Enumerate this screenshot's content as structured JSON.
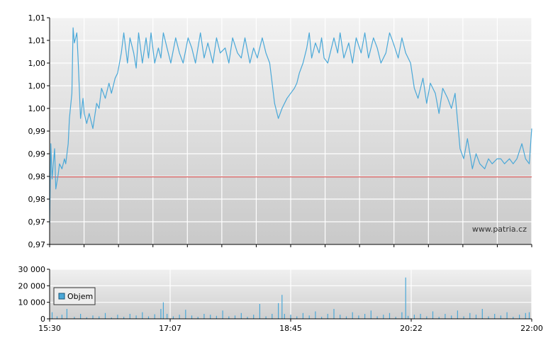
{
  "chart_data": [
    {
      "type": "line",
      "title": "",
      "xlabel": "",
      "ylabel": "",
      "ylim": [
        0.965,
        1.01
      ],
      "grid": true,
      "y_tick_labels": [
        "0,97",
        "0,97",
        "0,98",
        "0,98",
        "0,99",
        "0,99",
        "1,00",
        "1,00",
        "1,00",
        "1,01",
        "1,01"
      ],
      "x_tick_labels": [
        "15:30",
        "17:07",
        "18:45",
        "20:22",
        "22:00"
      ],
      "reference_line": {
        "value": 0.9784,
        "color": "#cc3333"
      },
      "series": [
        {
          "color": "#4aa8d8",
          "x": [
            "15:30",
            "15:31",
            "15:32",
            "15:34",
            "15:35",
            "15:37",
            "15:38",
            "15:40",
            "15:42",
            "15:43",
            "15:45",
            "15:46",
            "15:48",
            "15:49",
            "15:50",
            "15:52",
            "15:53",
            "15:55",
            "15:57",
            "15:58",
            "16:00",
            "16:02",
            "16:05",
            "16:08",
            "16:10",
            "16:12",
            "16:15",
            "16:18",
            "16:20",
            "16:23",
            "16:25",
            "16:28",
            "16:30",
            "16:33",
            "16:35",
            "16:38",
            "16:40",
            "16:42",
            "16:45",
            "16:48",
            "16:50",
            "16:52",
            "16:55",
            "16:58",
            "17:00",
            "17:02",
            "17:05",
            "17:08",
            "17:12",
            "17:15",
            "17:18",
            "17:22",
            "17:25",
            "17:28",
            "17:32",
            "17:35",
            "17:38",
            "17:42",
            "17:45",
            "17:48",
            "17:52",
            "17:55",
            "17:58",
            "18:02",
            "18:05",
            "18:08",
            "18:12",
            "18:15",
            "18:18",
            "18:22",
            "18:25",
            "18:28",
            "18:32",
            "18:35",
            "18:38",
            "18:42",
            "18:45",
            "18:48",
            "18:50",
            "18:52",
            "18:55",
            "18:58",
            "19:00",
            "19:02",
            "19:05",
            "19:08",
            "19:10",
            "19:12",
            "19:15",
            "19:18",
            "19:20",
            "19:23",
            "19:25",
            "19:28",
            "19:32",
            "19:35",
            "19:38",
            "19:42",
            "19:45",
            "19:48",
            "19:52",
            "19:55",
            "19:58",
            "20:02",
            "20:05",
            "20:08",
            "20:12",
            "20:15",
            "20:18",
            "20:22",
            "20:25",
            "20:28",
            "20:32",
            "20:35",
            "20:38",
            "20:42",
            "20:45",
            "20:48",
            "20:52",
            "20:55",
            "20:58",
            "21:02",
            "21:05",
            "21:08",
            "21:12",
            "21:15",
            "21:18",
            "21:22",
            "21:25",
            "21:28",
            "21:32",
            "21:35",
            "21:38",
            "21:42",
            "21:45",
            "21:48",
            "21:52",
            "21:55",
            "21:58",
            "22:00"
          ],
          "values": [
            0.969,
            0.985,
            0.978,
            0.984,
            0.976,
            0.979,
            0.981,
            0.98,
            0.982,
            0.981,
            0.985,
            0.99,
            0.995,
            1.008,
            1.005,
            1.007,
            1.002,
            0.99,
            0.994,
            0.991,
            0.989,
            0.991,
            0.988,
            0.993,
            0.992,
            0.996,
            0.994,
            0.997,
            0.995,
            0.998,
            0.999,
            1.003,
            1.007,
            1.001,
            1.006,
            1.003,
            1.0,
            1.007,
            1.001,
            1.006,
            1.002,
            1.007,
            1.001,
            1.004,
            1.002,
            1.007,
            1.004,
            1.001,
            1.006,
            1.003,
            1.001,
            1.006,
            1.004,
            1.001,
            1.007,
            1.002,
            1.005,
            1.001,
            1.006,
            1.003,
            1.004,
            1.001,
            1.006,
            1.003,
            1.002,
            1.006,
            1.001,
            1.004,
            1.002,
            1.006,
            1.003,
            1.001,
            0.993,
            0.99,
            0.992,
            0.994,
            0.995,
            0.996,
            0.997,
            0.999,
            1.001,
            1.004,
            1.007,
            1.002,
            1.005,
            1.003,
            1.006,
            1.002,
            1.001,
            1.004,
            1.006,
            1.003,
            1.007,
            1.002,
            1.005,
            1.001,
            1.006,
            1.003,
            1.007,
            1.002,
            1.006,
            1.004,
            1.001,
            1.003,
            1.007,
            1.005,
            1.002,
            1.006,
            1.003,
            1.001,
            0.996,
            0.994,
            0.998,
            0.993,
            0.997,
            0.995,
            0.991,
            0.996,
            0.994,
            0.992,
            0.995,
            0.984,
            0.982,
            0.986,
            0.98,
            0.983,
            0.981,
            0.98,
            0.982,
            0.981,
            0.982,
            0.982,
            0.981,
            0.982,
            0.981,
            0.982,
            0.985,
            0.982,
            0.981,
            0.988
          ]
        }
      ],
      "watermark": "www.patria.cz"
    },
    {
      "type": "bar",
      "title": "",
      "xlabel": "",
      "ylabel": "",
      "ylim": [
        0,
        30000
      ],
      "grid": true,
      "y_tick_labels": [
        "0",
        "10 000",
        "20 000",
        "30 000"
      ],
      "x_tick_labels": [
        "15:30",
        "17:07",
        "18:45",
        "20:22",
        "22:00"
      ],
      "legend": {
        "position": "left",
        "entries": [
          {
            "name": "Objem",
            "color": "#4aa8d8"
          }
        ]
      },
      "series": [
        {
          "name": "Objem",
          "color": "#4aa8d8",
          "x": [
            "15:32",
            "15:36",
            "15:40",
            "15:44",
            "15:50",
            "15:55",
            "16:00",
            "16:05",
            "16:10",
            "16:15",
            "16:20",
            "16:25",
            "16:30",
            "16:35",
            "16:40",
            "16:45",
            "16:50",
            "16:55",
            "17:00",
            "17:02",
            "17:05",
            "17:10",
            "17:15",
            "17:20",
            "17:25",
            "17:30",
            "17:35",
            "17:40",
            "17:45",
            "17:50",
            "17:55",
            "18:00",
            "18:05",
            "18:10",
            "18:15",
            "18:20",
            "18:25",
            "18:30",
            "18:35",
            "18:38",
            "18:40",
            "18:45",
            "18:50",
            "18:55",
            "19:00",
            "19:05",
            "19:10",
            "19:15",
            "19:20",
            "19:25",
            "19:30",
            "19:35",
            "19:40",
            "19:45",
            "19:50",
            "19:55",
            "20:00",
            "20:05",
            "20:10",
            "20:15",
            "20:18",
            "20:20",
            "20:25",
            "20:30",
            "20:35",
            "20:40",
            "20:45",
            "20:50",
            "20:55",
            "21:00",
            "21:05",
            "21:10",
            "21:15",
            "21:20",
            "21:25",
            "21:30",
            "21:35",
            "21:40",
            "21:45",
            "21:50",
            "21:55",
            "21:58"
          ],
          "values": [
            4000,
            1500,
            2500,
            6000,
            1200,
            3000,
            1000,
            2000,
            1500,
            3500,
            800,
            2500,
            1200,
            3000,
            2000,
            4000,
            1500,
            2800,
            6000,
            10000,
            3000,
            1500,
            2500,
            5500,
            2000,
            1200,
            3000,
            2500,
            1800,
            5000,
            1500,
            2000,
            3500,
            1200,
            2500,
            9000,
            1500,
            3000,
            9500,
            14500,
            3000,
            2500,
            1500,
            3500,
            2000,
            4500,
            1200,
            3000,
            6000,
            2500,
            1500,
            4000,
            2000,
            3000,
            5000,
            1500,
            2500,
            3500,
            1200,
            4000,
            25000,
            1800,
            2500,
            3000,
            1500,
            4500,
            1200,
            3000,
            2000,
            5000,
            1500,
            3500,
            2500,
            6000,
            1500,
            3000,
            2000,
            4000,
            1200,
            2500,
            3500,
            4000
          ]
        }
      ]
    }
  ]
}
